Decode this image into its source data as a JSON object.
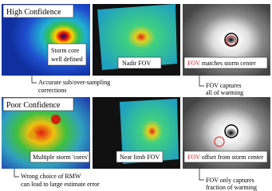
{
  "rows": [
    {
      "title": "High Confidence",
      "panels": [
        {
          "label": [
            "Storm core",
            "well defined"
          ]
        },
        {
          "label": [
            "Nadir FOV"
          ]
        },
        {
          "label_highlight": "FOV",
          "label": [
            "matches storm center"
          ]
        }
      ],
      "notes": [
        {
          "lines": [
            "Accurate sub/over-sampling",
            "corrections"
          ]
        },
        {
          "lines": [
            "FOV captures",
            "all of warming"
          ]
        }
      ]
    },
    {
      "title": "Poor Confidence",
      "panels": [
        {
          "label": [
            "Multiple storm 'cores'"
          ]
        },
        {
          "label": [
            "Near limb FOV"
          ]
        },
        {
          "label_highlight": "FOV",
          "label": [
            "offset from storm center"
          ]
        }
      ],
      "notes": [
        {
          "lines": [
            "Wrong choice of RMW",
            "can lead to large estimate error"
          ]
        },
        {
          "lines": [
            "FOV only captures",
            "fraction of warming"
          ]
        }
      ]
    }
  ]
}
